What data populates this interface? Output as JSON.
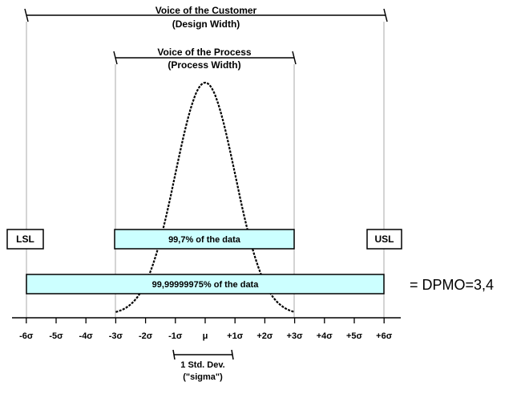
{
  "voice_of_customer": {
    "title": "Voice of the Customer",
    "subtitle": "(Design Width)"
  },
  "voice_of_process": {
    "title": "Voice of the Process",
    "subtitle": "(Process Width)"
  },
  "limits": {
    "lower": "LSL",
    "upper": "USL"
  },
  "bands": {
    "three_sigma": "99,7% of the data",
    "six_sigma": "99,99999975% of the data"
  },
  "dpmo_text": "= DPMO=3,4",
  "axis_ticks": [
    "-6σ",
    "-5σ",
    "-4σ",
    "-3σ",
    "-2σ",
    "-1σ",
    "μ",
    "+1σ",
    "+2σ",
    "+3σ",
    "+4σ",
    "+5σ",
    "+6σ"
  ],
  "std_dev": {
    "line1": "1 Std. Dev.",
    "line2": "(\"sigma\")"
  },
  "colors": {
    "band_fill": "#ccffff",
    "ink": "#000000"
  }
}
